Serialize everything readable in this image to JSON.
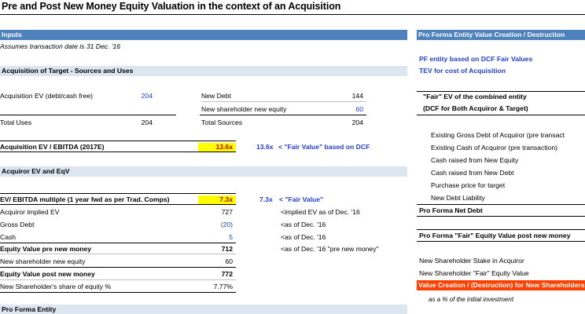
{
  "title": "Pre and Post New Money Equity Valuation in the context of an Acquisition",
  "inputs": {
    "header": "Inputs",
    "note": "Assumes transaction date is 31 Dec. '16"
  },
  "sources_uses": {
    "header": "Acquisition of Target - Sources and Uses",
    "acq_ev_label": "Acquisition EV (debt/cash free)",
    "acq_ev_value": "204",
    "new_debt_label": "New Debt",
    "new_debt_value": "144",
    "new_equity_label": "New shareholder new equity",
    "new_equity_value": "60",
    "total_uses_label": "Total Uses",
    "total_uses_value": "204",
    "total_sources_label": "Total Sources",
    "total_sources_value": "204",
    "multiple_label": "Acquisition EV / EBITDA (2017E)",
    "multiple_value": "13.6x",
    "fair_value_num": "13.6x",
    "fair_value_note": "< \"Fair Value\" based on DCF"
  },
  "acquiror": {
    "header": "Acquiror EV and EqV",
    "rows": [
      {
        "label": "EV/ EBITDA multiple (1 year fwd as per Trad. Comps)",
        "value": "7.3x",
        "extra": "7.3x",
        "note": "< \"Fair Value\""
      },
      {
        "label": "Acquiror implied EV",
        "value": "727",
        "extra": "",
        "note": "<implied EV as of Dec. '16"
      },
      {
        "label": "Gross Debt",
        "value": "(20)",
        "extra": "",
        "note": "<as of Dec. '16"
      },
      {
        "label": "Cash",
        "value": "5",
        "extra": "",
        "note": "<as of Dec. '16"
      },
      {
        "label": "Equity Value pre new money",
        "value": "712",
        "extra": "",
        "note": "<as of Dec. '16 \"pre new money\""
      },
      {
        "label": "New shareholder new equity",
        "value": "60",
        "extra": "",
        "note": ""
      },
      {
        "label": "Equity Value post new money",
        "value": "772",
        "extra": "",
        "note": ""
      },
      {
        "label": "New Shareholder's share of equity %",
        "value": "7.77%",
        "extra": "",
        "note": ""
      }
    ]
  },
  "pro_forma_entity": {
    "header": "Pro Forma Entity"
  },
  "right_panel": {
    "header": "Pro Forma Entity Value Creation / Destruction",
    "link1": "PF entity based on DCF Fair Values",
    "link2": "TEV for cost of Acquisition",
    "fair_ev_label": "\"Fair\" EV of the combined entity",
    "dcf_label": "(DCF for Both Acquiror & Target)",
    "items": [
      "Existing Gross Debt of Acquiror (pre transact",
      "Existing Cash of Acquiror (pre transaction)",
      "Cash raised from New Equity",
      "Cash raised from New Debt",
      "Purchase price for target",
      "New Debt Liability"
    ],
    "net_debt_label": "Pro Forma Net Debt",
    "fair_equity_label": "Pro Forma \"Fair\" Equity Value post new money",
    "stake_label": "New Shareholder Stake in Acquiror",
    "fair_equity_value_label": "New Shareholder \"Fair\" Equity Value",
    "value_creation_label": "Value Creation / (Destruction) for New Shareholders",
    "pct_note": "as a % of the initial investment"
  },
  "colors": {
    "header_blue": "#4f81bd",
    "band_blue": "#dce6f1",
    "highlight_yellow": "#ffff00",
    "alert_orange": "#ff4000",
    "input_blue": "#1f3fd0"
  }
}
